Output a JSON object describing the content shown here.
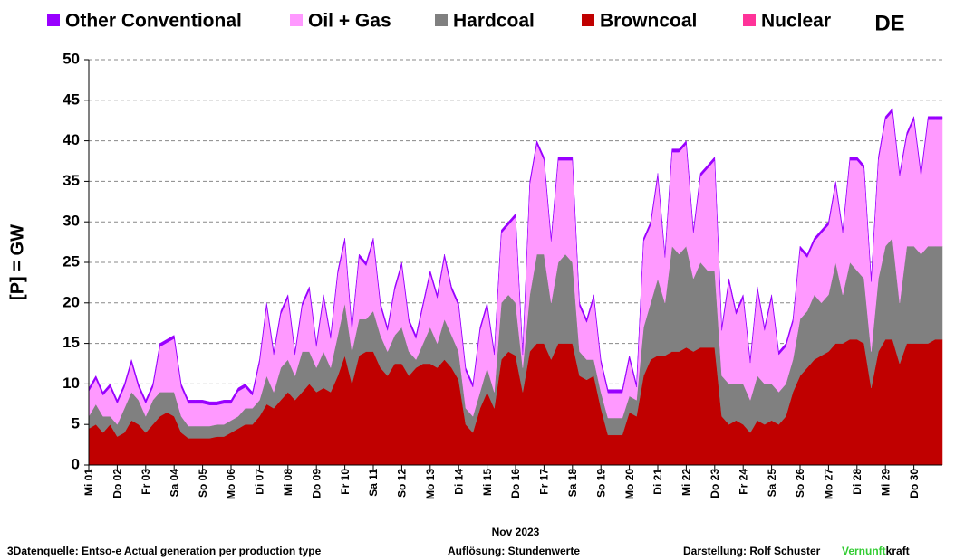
{
  "chart_data": {
    "type": "stacked_area",
    "badge": "DE",
    "ylabel": "[P] = GW",
    "xlabel": "Nov 2023",
    "footer": {
      "source": "3Datenquelle: Entso-e  Actual generation per production type",
      "resolution": "Auflösung: Stundenwerte",
      "author": "Darstellung:  Rolf Schuster",
      "brand_a": "Vernunft",
      "brand_b": "kraft"
    },
    "ylim": [
      0,
      50
    ],
    "yticks": [
      0,
      5,
      10,
      15,
      20,
      25,
      30,
      35,
      40,
      45,
      50
    ],
    "grid": true,
    "categories": [
      "Mi 01",
      null,
      null,
      null,
      "Do 02",
      null,
      null,
      null,
      "Fr 03",
      null,
      null,
      null,
      "Sa 04",
      null,
      null,
      null,
      "So 05",
      null,
      null,
      null,
      "Mo 06",
      null,
      null,
      null,
      "Di 07",
      null,
      null,
      null,
      "Mi 08",
      null,
      null,
      null,
      "Do 09",
      null,
      null,
      null,
      "Fr 10",
      null,
      null,
      null,
      "Sa 11",
      null,
      null,
      null,
      "So 12",
      null,
      null,
      null,
      "Mo 13",
      null,
      null,
      null,
      "Di 14",
      null,
      null,
      null,
      "Mi 15",
      null,
      null,
      null,
      "Do 16",
      null,
      null,
      null,
      "Fr 17",
      null,
      null,
      null,
      "Sa 18",
      null,
      null,
      null,
      "So 19",
      null,
      null,
      null,
      "Mo 20",
      null,
      null,
      null,
      "Di 21",
      null,
      null,
      null,
      "Mi 22",
      null,
      null,
      null,
      "Do 23",
      null,
      null,
      null,
      "Fr 24",
      null,
      null,
      null,
      "Sa 25",
      null,
      null,
      null,
      "So 26",
      null,
      null,
      null,
      "Mo 27",
      null,
      null,
      null,
      "Di 28",
      null,
      null,
      null,
      "Mi 29",
      null,
      null,
      null,
      "Do 30",
      null,
      null,
      null
    ],
    "series": [
      {
        "name": "Other Conventional",
        "color": "#9900ff",
        "values": [
          0.4,
          0.4,
          0.4,
          0.4,
          0.4,
          0.4,
          0.4,
          0.4,
          0.4,
          0.4,
          0.4,
          0.4,
          0.4,
          0.4,
          0.4,
          0.4,
          0.4,
          0.4,
          0.4,
          0.4,
          0.4,
          0.4,
          0.4,
          0.4,
          0.4,
          0.4,
          0.4,
          0.4,
          0.4,
          0.4,
          0.4,
          0.4,
          0.4,
          0.4,
          0.4,
          0.4,
          0.4,
          0.4,
          0.4,
          0.4,
          0.4,
          0.4,
          0.4,
          0.4,
          0.4,
          0.4,
          0.4,
          0.4,
          0.4,
          0.4,
          0.4,
          0.4,
          0.4,
          0.4,
          0.4,
          0.4,
          0.4,
          0.4,
          0.4,
          0.4,
          0.4,
          0.4,
          0.4,
          0.4,
          0.4,
          0.4,
          0.4,
          0.4,
          0.4,
          0.4,
          0.4,
          0.4,
          0.4,
          0.4,
          0.4,
          0.4,
          0.4,
          0.4,
          0.4,
          0.4,
          0.4,
          0.4,
          0.4,
          0.4,
          0.4,
          0.4,
          0.4,
          0.4,
          0.4,
          0.4,
          0.4,
          0.4,
          0.4,
          0.4,
          0.4,
          0.4,
          0.4,
          0.4,
          0.4,
          0.4,
          0.4,
          0.4,
          0.4,
          0.4,
          0.4,
          0.4,
          0.4,
          0.4,
          0.4,
          0.4,
          0.4,
          0.4,
          0.4,
          0.4,
          0.4,
          0.4,
          0.4,
          0.4,
          0.4,
          0.4
        ]
      },
      {
        "name": "Oil + Gas",
        "color": "#ff99ff",
        "values": [
          3.1,
          3.1,
          2.6,
          3.6,
          2.6,
          2.6,
          3.6,
          1.6,
          1.6,
          1.6,
          5.6,
          6.1,
          6.6,
          3.6,
          2.8,
          2.8,
          2.8,
          2.6,
          2.4,
          2.6,
          2.1,
          3.1,
          2.6,
          1.6,
          4.6,
          8.6,
          4.6,
          6.6,
          7.6,
          2.6,
          5.6,
          7.6,
          2.6,
          6.6,
          3.6,
          7.6,
          7.6,
          2.6,
          7.6,
          6.6,
          8.6,
          3.6,
          2.6,
          5.6,
          7.6,
          3.6,
          2.6,
          4.6,
          6.6,
          5.6,
          7.6,
          5.6,
          5.6,
          4.6,
          3.6,
          7.6,
          7.6,
          4.6,
          8.6,
          8.6,
          10.6,
          1.6,
          13.6,
          13.6,
          11.6,
          7.6,
          12.6,
          11.6,
          12.6,
          5.6,
          4.6,
          7.6,
          3.6,
          3.1,
          3.1,
          3.1,
          4.6,
          1.6,
          10.6,
          9.6,
          12.6,
          5.6,
          11.6,
          12.6,
          12.6,
          5.6,
          10.6,
          12.6,
          13.6,
          5.6,
          12.6,
          8.6,
          10.6,
          4.6,
          10.6,
          6.6,
          10.6,
          4.6,
          4.6,
          4.6,
          8.6,
          6.6,
          6.6,
          8.6,
          8.6,
          9.6,
          7.6,
          12.6,
          13.6,
          13.6,
          8.6,
          14.6,
          15.6,
          15.6,
          15.6,
          13.6,
          15.6,
          9.6,
          15.6,
          15.6
        ]
      },
      {
        "name": "Hardcoal",
        "color": "#808080",
        "values": [
          1.5,
          2.5,
          2,
          1,
          1.5,
          3,
          3.5,
          3,
          2,
          3,
          3,
          2.5,
          3,
          2,
          1.5,
          1.5,
          1.5,
          1.5,
          1.5,
          1.5,
          1.5,
          1.5,
          2,
          2,
          2,
          3.5,
          2,
          4,
          4,
          3,
          5,
          4,
          3,
          4.5,
          3,
          5,
          6.5,
          4,
          4.5,
          4,
          5,
          4,
          3,
          3.5,
          4.5,
          3,
          1,
          2.5,
          4.5,
          3,
          5,
          4,
          3.5,
          2,
          2,
          2,
          3,
          2,
          7,
          7,
          6.5,
          3,
          7,
          11,
          11,
          7,
          10,
          11,
          10,
          3,
          2.5,
          2,
          2,
          2.1,
          2.1,
          2.1,
          2,
          2,
          6,
          7,
          9.5,
          6.5,
          13,
          12,
          12.5,
          9,
          10.5,
          9.5,
          9.5,
          5,
          5,
          4.5,
          5,
          4,
          5.5,
          5,
          4.5,
          4,
          4,
          4,
          7,
          7,
          8,
          6.5,
          7,
          10,
          6,
          9.5,
          8.5,
          8,
          4.5,
          9,
          11.5,
          12.5,
          7.5,
          12,
          12,
          11,
          12,
          11.5
        ]
      },
      {
        "name": "Browncoal",
        "color": "#c00000",
        "values": [
          4.5,
          5,
          4,
          5,
          3.5,
          4,
          5.5,
          5,
          4,
          5,
          6,
          6.5,
          6,
          4,
          3.3,
          3.3,
          3.3,
          3.3,
          3.5,
          3.5,
          4,
          4.5,
          5,
          5,
          6,
          7.5,
          7,
          8,
          9,
          8,
          9,
          10,
          9,
          9.5,
          9,
          11,
          13.5,
          10,
          13.5,
          14,
          14,
          12,
          11,
          12.5,
          12.5,
          11,
          12,
          12.5,
          12.5,
          12,
          13,
          12,
          10.5,
          5,
          4,
          7,
          9,
          7,
          13,
          14,
          13.5,
          9,
          14,
          15,
          15,
          13,
          15,
          15,
          15,
          11,
          10.5,
          11,
          7,
          3.7,
          3.7,
          3.7,
          6.5,
          6,
          11,
          13,
          13.5,
          13.5,
          14,
          14,
          14.5,
          14,
          14.5,
          14.5,
          14.5,
          6,
          5,
          5.5,
          5,
          4,
          5.5,
          5,
          5.5,
          5,
          6,
          9,
          11,
          12,
          13,
          13.5,
          14,
          15,
          15,
          15.5,
          15.5,
          15,
          9.5,
          14,
          15.5,
          15.5,
          12.5,
          15,
          15,
          15,
          15,
          15.5
        ]
      },
      {
        "name": "Nuclear",
        "color": "#ff3399",
        "values": [
          0,
          0,
          0,
          0,
          0,
          0,
          0,
          0,
          0,
          0,
          0,
          0,
          0,
          0,
          0,
          0,
          0,
          0,
          0,
          0,
          0,
          0,
          0,
          0,
          0,
          0,
          0,
          0,
          0,
          0,
          0,
          0,
          0,
          0,
          0,
          0,
          0,
          0,
          0,
          0,
          0,
          0,
          0,
          0,
          0,
          0,
          0,
          0,
          0,
          0,
          0,
          0,
          0,
          0,
          0,
          0,
          0,
          0,
          0,
          0,
          0,
          0,
          0,
          0,
          0,
          0,
          0,
          0,
          0,
          0,
          0,
          0,
          0,
          0,
          0,
          0,
          0,
          0,
          0,
          0,
          0,
          0,
          0,
          0,
          0,
          0,
          0,
          0,
          0,
          0,
          0,
          0,
          0,
          0,
          0,
          0,
          0,
          0,
          0,
          0,
          0,
          0,
          0,
          0,
          0,
          0,
          0,
          0,
          0,
          0,
          0,
          0,
          0,
          0,
          0,
          0,
          0,
          0,
          0,
          0
        ]
      }
    ]
  }
}
